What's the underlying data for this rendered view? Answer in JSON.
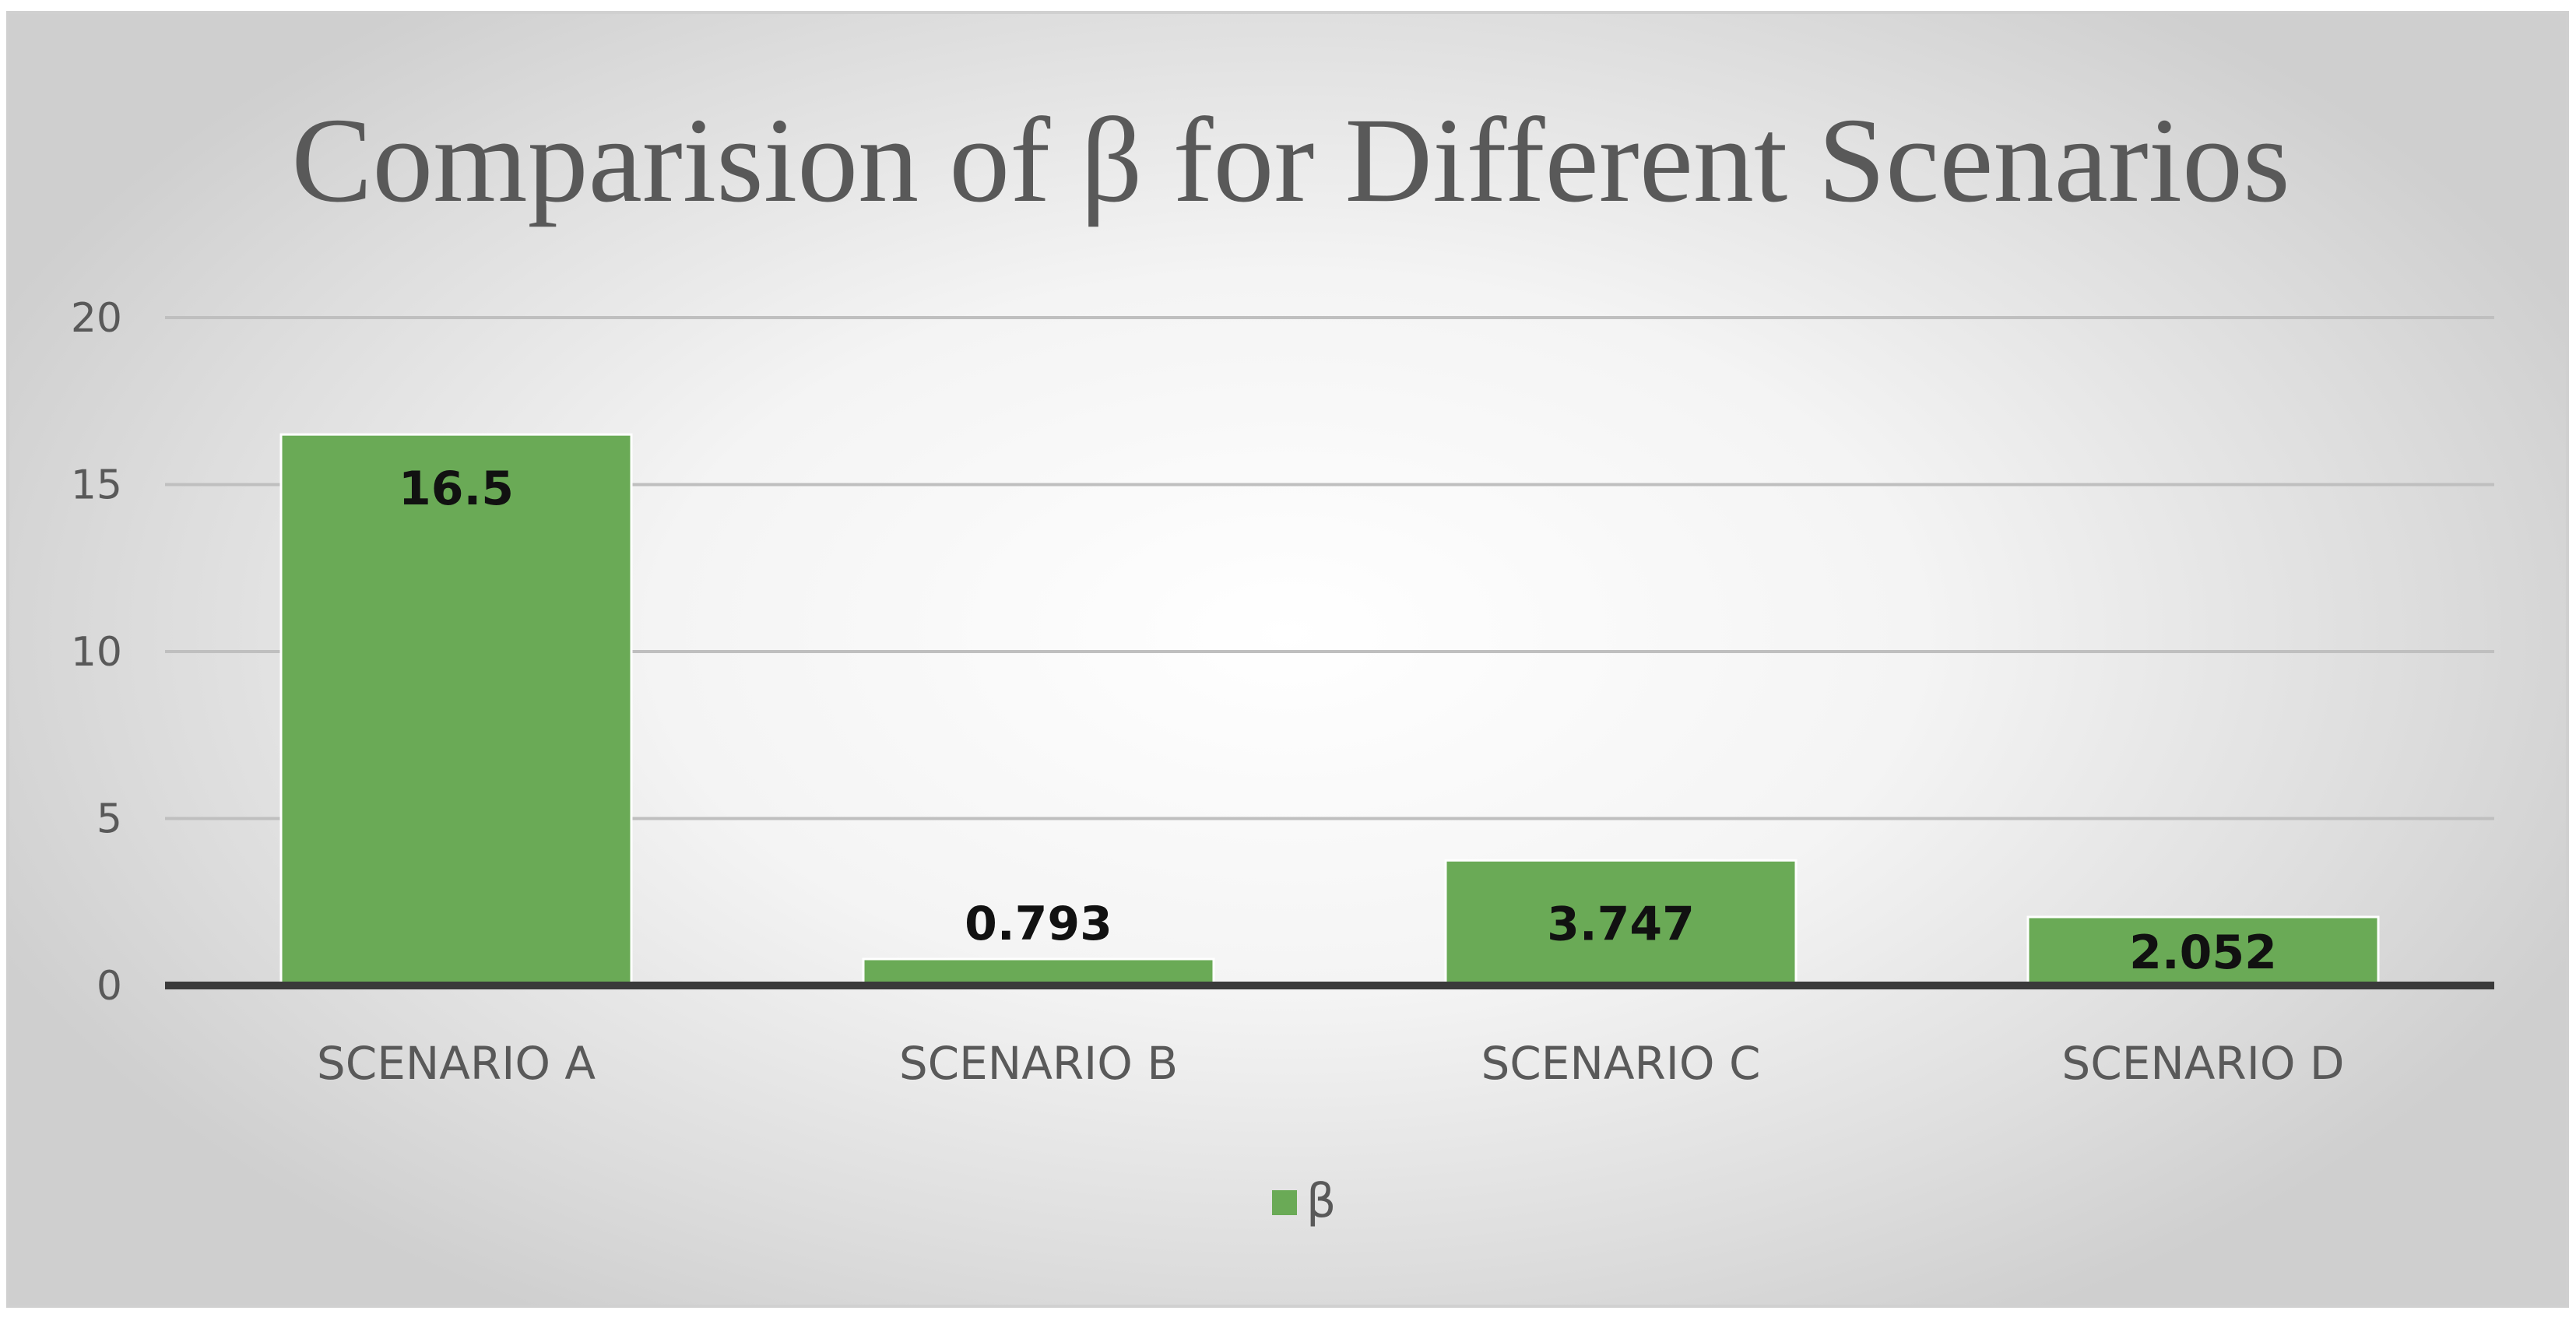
{
  "chart_data": {
    "type": "bar",
    "title": "Comparision of β for Different Scenarios",
    "xlabel": "",
    "ylabel": "",
    "categories": [
      "SCENARIO A",
      "SCENARIO B",
      "SCENARIO C",
      "SCENARIO D"
    ],
    "series": [
      {
        "name": "β",
        "values": [
          16.5,
          0.793,
          3.747,
          2.052
        ],
        "labels": [
          "16.5",
          "0.793",
          "3.747",
          "2.052"
        ]
      }
    ],
    "ylim": [
      0,
      20
    ],
    "yticks": [
      "0",
      "5",
      "10",
      "15",
      "20"
    ],
    "grid": true,
    "legend_position": "bottom",
    "colors": {
      "bar": "#6aaa56",
      "gridline": "#bfbfbf",
      "axis": "#3a3a3a"
    }
  }
}
